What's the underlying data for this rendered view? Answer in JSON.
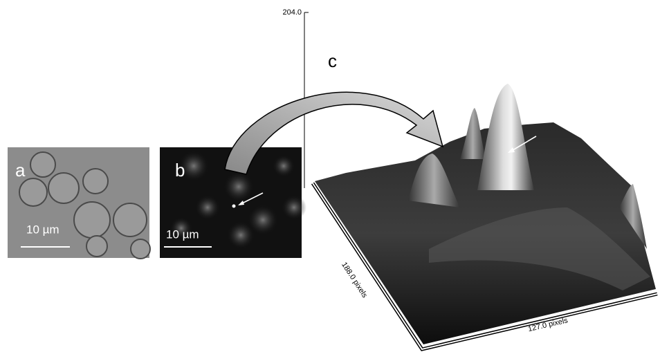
{
  "panels": {
    "a": {
      "label": "a",
      "scale_bar": "10 µm"
    },
    "b": {
      "label": "b",
      "scale_bar": "10 µm"
    },
    "c": {
      "label": "c",
      "z_max": "204.0",
      "y_axis": "188.0 pixels",
      "x_axis": "127.0 pixels"
    }
  }
}
